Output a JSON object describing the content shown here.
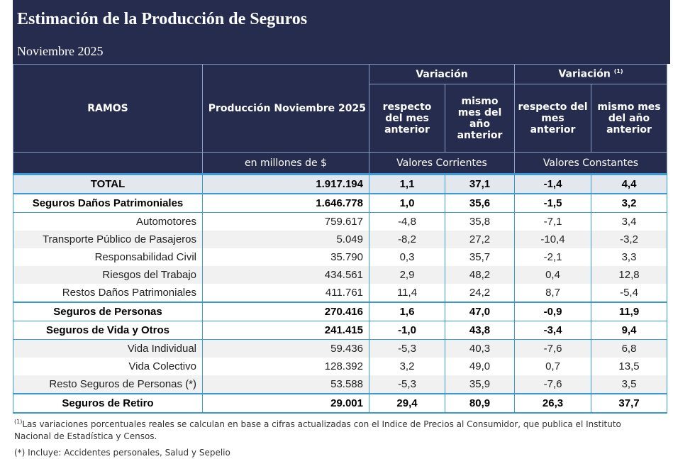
{
  "header": {
    "title": "Estimación de la Producción de Seguros",
    "subtitle": "Noviembre 2025"
  },
  "table": {
    "columns": {
      "ramos": "RAMOS",
      "production": "Producción Noviembre 2025",
      "variation": "Variación",
      "variation_real": "Variación",
      "variation_real_note": "(1)",
      "prev_month": "respecto del mes anterior",
      "prev_year": "mismo mes del año anterior",
      "prev_month_real": "respecto del mes anterior",
      "prev_year_real": "mismo mes del año anterior",
      "units": "en millones de $",
      "current": "Valores Corrientes",
      "constant": "Valores Constantes"
    },
    "rows": [
      [
        "TOTAL",
        "1.917.194",
        "1,1",
        "37,1",
        "-1,4",
        "4,4"
      ],
      [
        "Seguros Daños Patrimoniales",
        "1.646.778",
        "1,0",
        "35,6",
        "-1,5",
        "3,2"
      ],
      [
        "Automotores",
        "759.617",
        "-4,8",
        "35,8",
        "-7,1",
        "3,4"
      ],
      [
        "Transporte Público de Pasajeros",
        "5.049",
        "-8,2",
        "27,2",
        "-10,4",
        "-3,2"
      ],
      [
        "Responsabilidad Civil",
        "35.790",
        "0,3",
        "35,7",
        "-2,1",
        "3,3"
      ],
      [
        "Riesgos del Trabajo",
        "434.561",
        "2,9",
        "48,2",
        "0,4",
        "12,8"
      ],
      [
        "Restos Daños Patrimoniales",
        "411.761",
        "11,4",
        "24,2",
        "8,7",
        "-5,4"
      ],
      [
        "Seguros de Personas",
        "270.416",
        "1,6",
        "47,0",
        "-0,9",
        "11,9"
      ],
      [
        "Seguros de Vida y Otros",
        "241.415",
        "-1,0",
        "43,8",
        "-3,4",
        "9,4"
      ],
      [
        "Vida Individual",
        "59.436",
        "-5,3",
        "40,3",
        "-7,6",
        "6,8"
      ],
      [
        "Vida Colectivo",
        "128.392",
        "3,2",
        "49,0",
        "0,7",
        "13,5"
      ],
      [
        "Resto Seguros de Personas (*)",
        "53.588",
        "-5,3",
        "35,9",
        "-7,6",
        "3,5"
      ],
      [
        "Seguros de Retiro",
        "29.001",
        "29,4",
        "80,9",
        "26,3",
        "37,7"
      ]
    ]
  },
  "footnotes": {
    "note1_mark": "(1)",
    "note1": "Las variaciones porcentuales reales se calculan en base a cifras actualizadas con  el Indice de Precios al Consumidor, que publica el Instituto Nacional de Estadística y  Censos.",
    "note2": "(*) Incluye: Accidentes personales, Salud y Sepelio"
  }
}
